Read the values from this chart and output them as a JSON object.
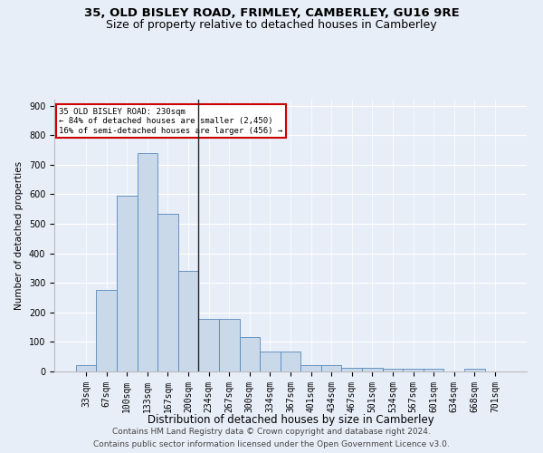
{
  "title1": "35, OLD BISLEY ROAD, FRIMLEY, CAMBERLEY, GU16 9RE",
  "title2": "Size of property relative to detached houses in Camberley",
  "xlabel": "Distribution of detached houses by size in Camberley",
  "ylabel": "Number of detached properties",
  "footer1": "Contains HM Land Registry data © Crown copyright and database right 2024.",
  "footer2": "Contains public sector information licensed under the Open Government Licence v3.0.",
  "annotation_title": "35 OLD BISLEY ROAD: 230sqm",
  "annotation_line2": "← 84% of detached houses are smaller (2,450)",
  "annotation_line3": "16% of semi-detached houses are larger (456) →",
  "bar_labels": [
    "33sqm",
    "67sqm",
    "100sqm",
    "133sqm",
    "167sqm",
    "200sqm",
    "234sqm",
    "267sqm",
    "300sqm",
    "334sqm",
    "367sqm",
    "401sqm",
    "434sqm",
    "467sqm",
    "501sqm",
    "534sqm",
    "567sqm",
    "601sqm",
    "634sqm",
    "668sqm",
    "701sqm"
  ],
  "bar_values": [
    22,
    275,
    595,
    740,
    535,
    340,
    178,
    178,
    117,
    68,
    68,
    22,
    22,
    12,
    12,
    10,
    10,
    8,
    0,
    8,
    0
  ],
  "bar_color": "#c9d9ea",
  "bar_edge_color": "#5588bb",
  "ylim": [
    0,
    920
  ],
  "yticks": [
    0,
    100,
    200,
    300,
    400,
    500,
    600,
    700,
    800,
    900
  ],
  "bg_color": "#e8eef8",
  "plot_bg_color": "#e8eef8",
  "annotation_box_color": "#ffffff",
  "annotation_box_edge": "#cc0000",
  "vline_x": 5.5,
  "vline_color": "#222222",
  "title1_fontsize": 9.5,
  "title2_fontsize": 9,
  "xlabel_fontsize": 8.5,
  "ylabel_fontsize": 7.5,
  "tick_fontsize": 7,
  "footer_fontsize": 6.5
}
